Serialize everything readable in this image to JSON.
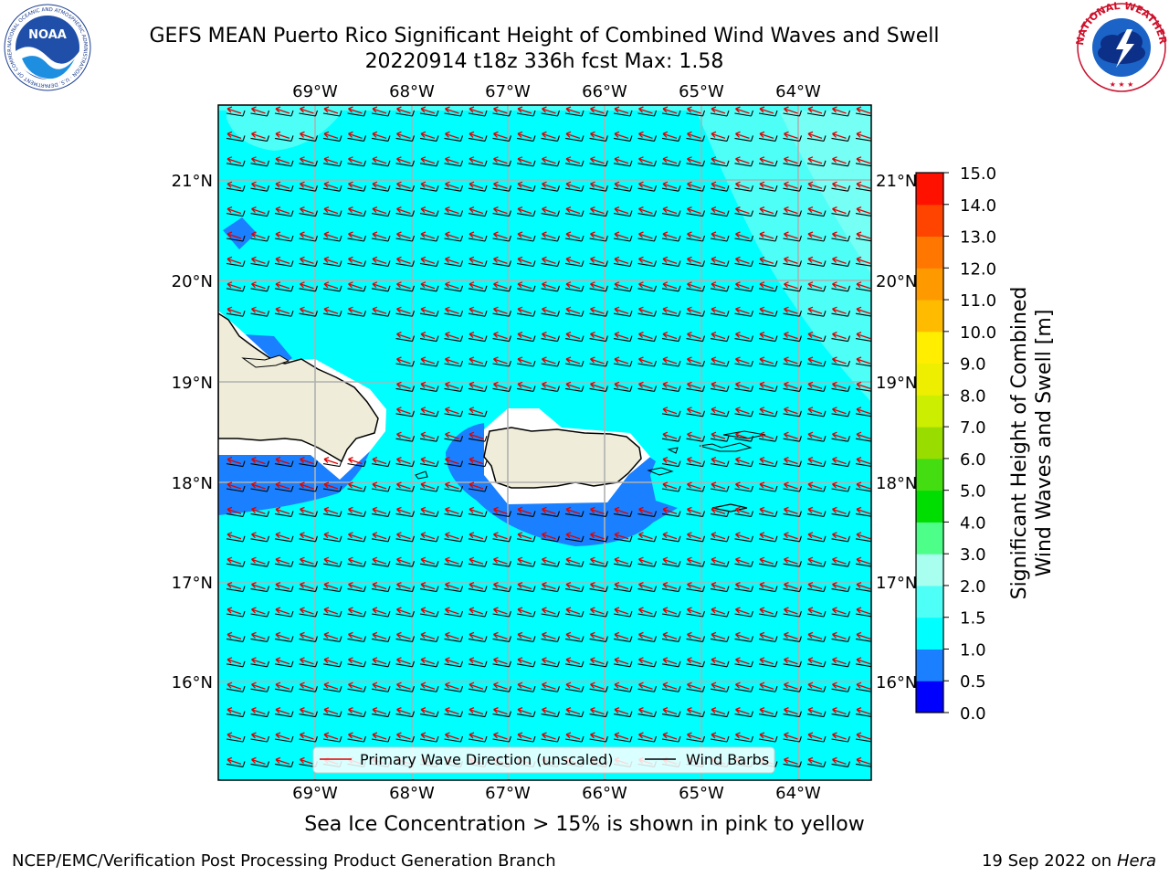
{
  "header": {
    "title_line1": "GEFS MEAN Puerto Rico Significant Height of Combined Wind Waves and Swell",
    "title_line2": "20220914 t18z 336h fcst   Max: 1.58"
  },
  "map": {
    "lon_labels": [
      "69°W",
      "68°W",
      "67°W",
      "66°W",
      "65°W",
      "64°W"
    ],
    "lat_labels": [
      "21°N",
      "20°N",
      "19°N",
      "18°N",
      "17°N",
      "16°N"
    ],
    "lon_range": [
      -70.0,
      -63.25
    ],
    "lat_range": [
      15.0,
      21.75
    ],
    "field_variable": "Significant Height of Combined Wind Waves and Swell",
    "field_max": 1.58,
    "regions": [
      {
        "label": "Puerto Rico",
        "shown_as": "land"
      },
      {
        "label": "Hispaniola (east)",
        "shown_as": "land"
      },
      {
        "label": "Virgin Islands",
        "shown_as": "land"
      }
    ],
    "colors": {
      "land": "#efedd9",
      "wave_0_5_1_0": "#1a80ff",
      "wave_1_0_1_5": "#00ffff",
      "wave_1_5_2_0": "#4dfff7",
      "wave_2_0_3_0": "#a8fff0",
      "wave_direction": "#e00000",
      "wind_barb": "#000000",
      "grid": "#b0b0b0"
    }
  },
  "legend": {
    "primary_wave_label": "Primary Wave Direction (unscaled)",
    "wind_barbs_label": "Wind Barbs"
  },
  "colorbar": {
    "label_line1": "Significant Height of Combined",
    "label_line2": "Wind Waves and Swell [m]",
    "ticks": [
      "0.0",
      "0.5",
      "1.0",
      "1.5",
      "2.0",
      "3.0",
      "4.0",
      "5.0",
      "6.0",
      "7.0",
      "8.0",
      "9.0",
      "10.0",
      "11.0",
      "12.0",
      "13.0",
      "14.0",
      "15.0"
    ],
    "colors": [
      "#0000ff",
      "#1a80ff",
      "#00ffff",
      "#4dfff7",
      "#a8fff0",
      "#4dff88",
      "#00dd00",
      "#44dd11",
      "#99dd00",
      "#ccee00",
      "#eeee00",
      "#ffee00",
      "#ffbb00",
      "#ff9900",
      "#ff7700",
      "#ff4400",
      "#ff1100"
    ]
  },
  "caption": "Sea Ice Concentration > 15% is shown in pink to yellow",
  "footer": {
    "left": "NCEP/EMC/Verification Post Processing Product Generation Branch",
    "right_date": "19 Sep 2022 on",
    "right_machine": "Hera"
  },
  "logos": {
    "noaa_text": "NOAA",
    "noaa_ring_text": "NATIONAL OCEANIC AND ATMOSPHERIC ADMINISTRATION · U.S. DEPARTMENT OF COMMERCE",
    "nws_ring_text": "NATIONAL WEATHER SERVICE"
  }
}
